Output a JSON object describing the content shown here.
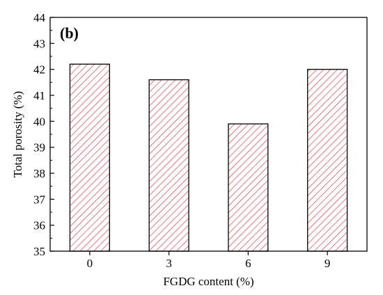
{
  "chart_data": {
    "type": "bar",
    "panel_label": "(b)",
    "xlabel": "FGDG content (%)",
    "ylabel": "Total porosity (%)",
    "categories": [
      "0",
      "3",
      "6",
      "9"
    ],
    "values": [
      42.2,
      41.6,
      39.9,
      42.0
    ],
    "ylim": [
      35,
      44
    ],
    "yticks": [
      "35",
      "36",
      "37",
      "38",
      "39",
      "40",
      "41",
      "42",
      "43",
      "44"
    ],
    "grid": false,
    "bar_style": "diagonal hatch",
    "colors": {
      "hatch": "#e0202a",
      "bar_edge": "#000000",
      "axis": "#000000"
    }
  }
}
